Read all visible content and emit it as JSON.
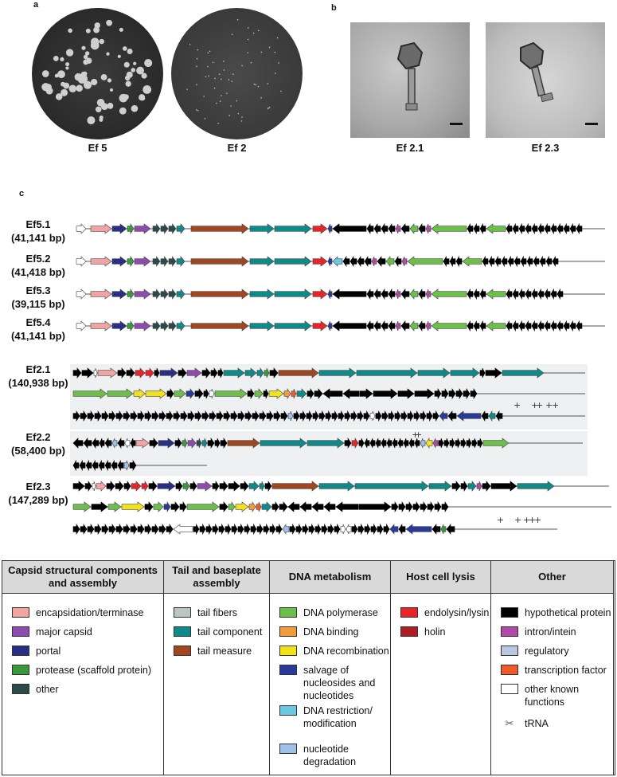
{
  "panels": {
    "a": {
      "letter": "a",
      "captions": [
        "Ef 5",
        "Ef 2"
      ]
    },
    "b": {
      "letter": "b",
      "captions": [
        "Ef 2.1",
        "Ef 2.3"
      ]
    },
    "c": {
      "letter": "c"
    }
  },
  "genomes": [
    {
      "name": "Ef5.1",
      "size": "(41,141 bp)"
    },
    {
      "name": "Ef5.2",
      "size": "(41,418 bp)"
    },
    {
      "name": "Ef5.3",
      "size": "(39,115 bp)"
    },
    {
      "name": "Ef5.4",
      "size": "(41,141 bp)"
    },
    {
      "name": "Ef2.1",
      "size": "(140,938 bp)"
    },
    {
      "name": "Ef2.2",
      "size": "(58,400 bp)"
    },
    {
      "name": "Ef2.3",
      "size": "(147,289 bp)"
    }
  ],
  "colors": {
    "encapsidation": "#f4a3a3",
    "major_capsid": "#8e4bb0",
    "portal": "#2a2f86",
    "protease": "#3a9a3a",
    "capsid_other": "#2c4a4a",
    "tail_fibers": "#b8c8c0",
    "tail_component": "#0f8a8a",
    "tail_measure": "#a0471f",
    "dna_polymerase": "#6cc04a",
    "dna_binding": "#f39a3a",
    "dna_recombination": "#f2e21a",
    "salvage": "#2a3a9a",
    "restriction": "#6cc8e0",
    "degradation": "#9cc0e8",
    "endolysin": "#e8242a",
    "holin": "#b01c24",
    "hypothetical": "#000000",
    "intron": "#b04aa8",
    "regulatory": "#b8c8e0",
    "transcription_factor": "#f05a28",
    "other_known": "#ffffff"
  },
  "legend": {
    "columns": [
      {
        "header": "Capsid structural components and assembly",
        "items": [
          {
            "label": "encapsidation/terminase",
            "color_key": "encapsidation"
          },
          {
            "label": "major capsid",
            "color_key": "major_capsid"
          },
          {
            "label": "portal",
            "color_key": "portal"
          },
          {
            "label": "protease (scaffold protein)",
            "color_key": "protease"
          },
          {
            "label": "other",
            "color_key": "capsid_other"
          }
        ]
      },
      {
        "header": "Tail and baseplate assembly",
        "items": [
          {
            "label": "tail fibers",
            "color_key": "tail_fibers"
          },
          {
            "label": "tail component",
            "color_key": "tail_component"
          },
          {
            "label": "tail measure",
            "color_key": "tail_measure"
          }
        ]
      },
      {
        "header": "DNA metabolism",
        "items": [
          {
            "label": "DNA polymerase",
            "color_key": "dna_polymerase"
          },
          {
            "label": "DNA binding",
            "color_key": "dna_binding"
          },
          {
            "label": "DNA recombination",
            "color_key": "dna_recombination"
          },
          {
            "label": "salvage of nucleosides and nucleotides",
            "color_key": "salvage"
          },
          {
            "label": "DNA restriction/ modification",
            "color_key": "restriction"
          },
          {
            "label": "nucleotide degradation",
            "color_key": "degradation"
          }
        ]
      },
      {
        "header": "Host cell lysis",
        "items": [
          {
            "label": "endolysin/lysin",
            "color_key": "endolysin"
          },
          {
            "label": "holin",
            "color_key": "holin"
          }
        ]
      },
      {
        "header": "Other",
        "items": [
          {
            "label": "hypothetical protein",
            "color_key": "hypothetical"
          },
          {
            "label": "intron/intein",
            "color_key": "intron"
          },
          {
            "label": "regulatory",
            "color_key": "regulatory"
          },
          {
            "label": "transcription factor",
            "color_key": "transcription_factor"
          },
          {
            "label": "other known functions",
            "color_key": "other_known"
          },
          {
            "label": "tRNA",
            "color_key": "trna"
          }
        ]
      }
    ]
  }
}
